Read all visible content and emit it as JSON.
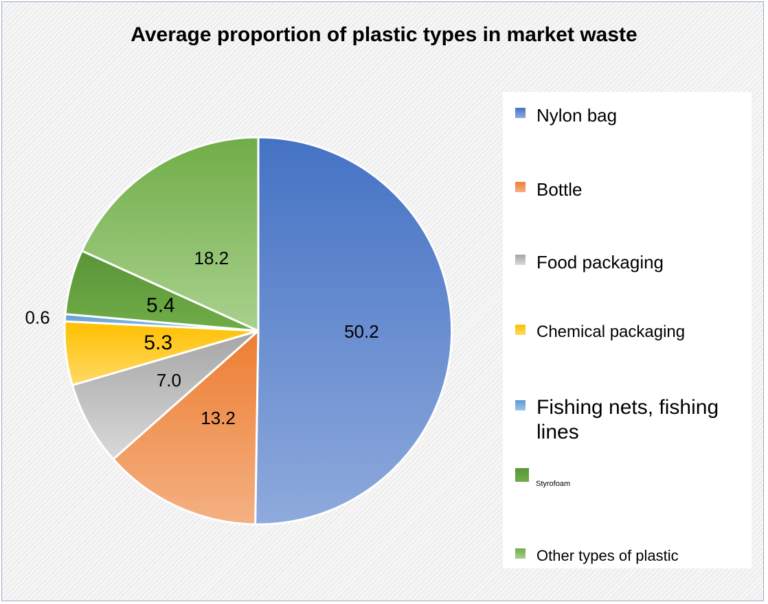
{
  "chart_data": {
    "type": "pie",
    "title": "Average proportion of plastic types in market waste",
    "slices": [
      {
        "name": "Nylon bag",
        "value": 50.2,
        "label": "50.2",
        "color": "#4472c4",
        "color_light": "#8faadc"
      },
      {
        "name": "Bottle",
        "value": 13.2,
        "label": "13.2",
        "color": "#ed7d31",
        "color_light": "#f4b183"
      },
      {
        "name": "Food packaging",
        "value": 7.0,
        "label": "7.0",
        "color": "#a5a5a5",
        "color_light": "#d9d9d9"
      },
      {
        "name": "Chemical packaging",
        "value": 5.3,
        "label": "5.3",
        "color": "#ffc000",
        "color_light": "#ffd966"
      },
      {
        "name": "Fishing nets, fishing lines",
        "value": 0.6,
        "label": "0.6",
        "color": "#5b9bd5",
        "color_light": "#9dc3e6"
      },
      {
        "name": "Styrofoam",
        "value": 5.4,
        "label": "5.4",
        "color": "#5a9438",
        "color_light": "#70ad47"
      },
      {
        "name": "Other types of plastic",
        "value": 18.2,
        "label": "18.2",
        "color": "#70ad47",
        "color_light": "#a9d18e"
      }
    ],
    "legend_position": "right"
  }
}
